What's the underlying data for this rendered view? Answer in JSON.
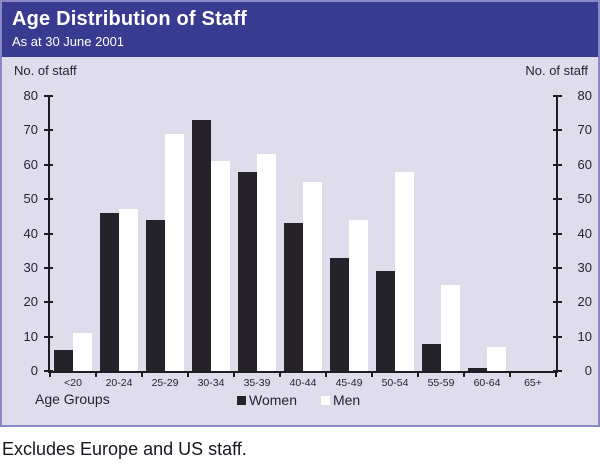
{
  "header": {
    "title": "Age Distribution of Staff",
    "subtitle": "As at 30 June 2001"
  },
  "axes": {
    "left_label": "No. of staff",
    "right_label": "No. of staff",
    "x_title": "Age Groups"
  },
  "legend": [
    {
      "label": "Women"
    },
    {
      "label": "Men"
    }
  ],
  "caption": "Excludes Europe and US staff.",
  "colors": {
    "header_bg": "#393b90",
    "panel_bg": "#dfdcec",
    "border": "#8a88c6",
    "women_bar": "#262229",
    "men_bar": "#ffffff",
    "axis": "#1c1c24"
  },
  "chart_data": {
    "type": "bar",
    "title": "Age Distribution of Staff",
    "subtitle": "As at 30 June 2001",
    "xlabel": "Age Groups",
    "ylabel": "No. of staff",
    "categories": [
      "<20",
      "20-24",
      "25-29",
      "30-34",
      "35-39",
      "40-44",
      "45-49",
      "50-54",
      "55-59",
      "60-64",
      "65+"
    ],
    "series": [
      {
        "name": "Women",
        "color": "#262229",
        "values": [
          6,
          46,
          44,
          73,
          58,
          43,
          33,
          29,
          8,
          1,
          0
        ]
      },
      {
        "name": "Men",
        "color": "#ffffff",
        "values": [
          11,
          47,
          69,
          61,
          63,
          55,
          44,
          58,
          25,
          7,
          0
        ]
      }
    ],
    "ylim": [
      0,
      80
    ],
    "yticks": [
      0,
      10,
      20,
      30,
      40,
      50,
      60,
      70,
      80
    ],
    "grid": false,
    "legend_position": "bottom",
    "note": "Excludes Europe and US staff."
  }
}
